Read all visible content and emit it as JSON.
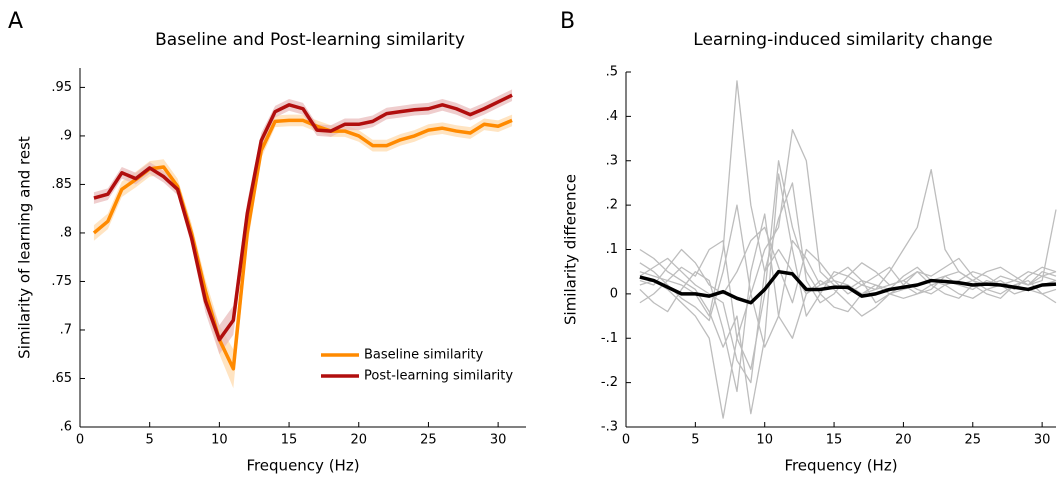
{
  "chart_data": [
    {
      "type": "line",
      "panel_label": "A",
      "title": "Baseline and Post-learning similarity",
      "x_label": "Frequency (Hz)",
      "y_label": "Similarity of learning and rest",
      "x": [
        1,
        2,
        3,
        4,
        5,
        6,
        7,
        8,
        9,
        10,
        11,
        12,
        13,
        14,
        15,
        16,
        17,
        18,
        19,
        20,
        21,
        22,
        23,
        24,
        25,
        26,
        27,
        28,
        29,
        30,
        31
      ],
      "series": [
        {
          "name": "Baseline similarity",
          "color": "#ff8a00",
          "band_color": "#ffd9a8",
          "values": [
            0.8,
            0.812,
            0.845,
            0.855,
            0.866,
            0.868,
            0.848,
            0.8,
            0.74,
            0.69,
            0.66,
            0.8,
            0.885,
            0.915,
            0.916,
            0.916,
            0.91,
            0.905,
            0.905,
            0.9,
            0.89,
            0.89,
            0.896,
            0.9,
            0.906,
            0.908,
            0.905,
            0.903,
            0.912,
            0.91,
            0.916
          ],
          "errors": [
            0.008,
            0.008,
            0.008,
            0.008,
            0.008,
            0.008,
            0.008,
            0.01,
            0.012,
            0.015,
            0.02,
            0.015,
            0.008,
            0.006,
            0.006,
            0.006,
            0.006,
            0.006,
            0.006,
            0.006,
            0.006,
            0.006,
            0.006,
            0.006,
            0.006,
            0.006,
            0.006,
            0.006,
            0.006,
            0.006,
            0.006
          ]
        },
        {
          "name": "Post-learning similarity",
          "color": "#b10e0e",
          "band_color": "#e8b8b8",
          "values": [
            0.836,
            0.84,
            0.862,
            0.856,
            0.867,
            0.858,
            0.845,
            0.795,
            0.73,
            0.69,
            0.71,
            0.82,
            0.895,
            0.925,
            0.932,
            0.928,
            0.906,
            0.905,
            0.912,
            0.912,
            0.915,
            0.923,
            0.925,
            0.927,
            0.928,
            0.932,
            0.928,
            0.922,
            0.928,
            0.935,
            0.942
          ],
          "errors": [
            0.006,
            0.006,
            0.006,
            0.006,
            0.006,
            0.006,
            0.006,
            0.008,
            0.012,
            0.015,
            0.015,
            0.012,
            0.008,
            0.006,
            0.006,
            0.006,
            0.006,
            0.006,
            0.006,
            0.006,
            0.006,
            0.006,
            0.006,
            0.006,
            0.006,
            0.006,
            0.006,
            0.006,
            0.006,
            0.006,
            0.006
          ]
        }
      ],
      "xlim": [
        0,
        32
      ],
      "xticks": [
        0,
        5,
        10,
        15,
        20,
        25,
        30
      ],
      "ylim": [
        0.6,
        0.97
      ],
      "yticks": [
        {
          "value": 0.6,
          "label": ".6"
        },
        {
          "value": 0.65,
          "label": ".65"
        },
        {
          "value": 0.7,
          "label": ".7"
        },
        {
          "value": 0.75,
          "label": ".75"
        },
        {
          "value": 0.8,
          "label": ".8"
        },
        {
          "value": 0.85,
          "label": ".85"
        },
        {
          "value": 0.9,
          "label": ".9"
        },
        {
          "value": 0.95,
          "label": ".95"
        }
      ],
      "legend": "lower right"
    },
    {
      "type": "line",
      "panel_label": "B",
      "title": "Learning-induced similarity change",
      "x_label": "Frequency (Hz)",
      "y_label": "Similarity difference",
      "x": [
        1,
        2,
        3,
        4,
        5,
        6,
        7,
        8,
        9,
        10,
        11,
        12,
        13,
        14,
        15,
        16,
        17,
        18,
        19,
        20,
        21,
        22,
        23,
        24,
        25,
        26,
        27,
        28,
        29,
        30,
        31
      ],
      "series": [
        {
          "color": "#bdbdbd",
          "values": [
            0.05,
            0.04,
            0.03,
            0.02,
            0.0,
            -0.05,
            0.1,
            0.48,
            0.2,
            0.05,
            0.1,
            0.05,
            0.0,
            0.02,
            0.03,
            0.02,
            0.0,
            0.01,
            0.02,
            0.03,
            0.05,
            0.02,
            0.03,
            0.02,
            0.01,
            0.03,
            0.02,
            0.03,
            0.02,
            0.04,
            0.05
          ]
        },
        {
          "color": "#bdbdbd",
          "values": [
            0.02,
            0.03,
            0.01,
            -0.02,
            -0.05,
            -0.1,
            -0.28,
            -0.1,
            0.0,
            0.1,
            0.15,
            0.37,
            0.3,
            0.05,
            0.02,
            0.01,
            0.03,
            0.02,
            0.0,
            0.01,
            0.02,
            0.03,
            0.04,
            0.02,
            0.03,
            0.01,
            0.02,
            0.0,
            0.01,
            0.02,
            0.03
          ]
        },
        {
          "color": "#bdbdbd",
          "values": [
            0.1,
            0.08,
            0.05,
            0.03,
            0.01,
            -0.04,
            -0.12,
            -0.05,
            -0.27,
            -0.1,
            0.27,
            0.1,
            -0.05,
            0.0,
            0.05,
            0.04,
            0.02,
            0.01,
            0.05,
            0.1,
            0.15,
            0.28,
            0.1,
            0.05,
            0.03,
            0.02,
            0.04,
            0.03,
            0.02,
            0.03,
            0.19
          ]
        },
        {
          "color": "#bdbdbd",
          "values": [
            0.04,
            0.06,
            0.08,
            0.05,
            0.02,
            0.0,
            -0.02,
            -0.15,
            -0.2,
            0.05,
            0.17,
            0.25,
            0.03,
            -0.02,
            0.0,
            0.04,
            0.07,
            0.05,
            0.02,
            0.03,
            0.01,
            0.0,
            0.02,
            0.03,
            0.05,
            0.04,
            0.02,
            0.03,
            0.05,
            0.04,
            0.03
          ]
        },
        {
          "color": "#bdbdbd",
          "values": [
            -0.02,
            0.0,
            0.03,
            0.06,
            0.04,
            0.1,
            0.12,
            -0.1,
            -0.17,
            0.0,
            0.3,
            0.15,
            0.05,
            0.0,
            -0.03,
            -0.04,
            0.0,
            0.02,
            0.01,
            0.04,
            0.06,
            0.03,
            0.02,
            0.0,
            -0.01,
            0.01,
            0.0,
            0.02,
            0.01,
            0.0,
            0.01
          ]
        },
        {
          "color": "#bdbdbd",
          "values": [
            0.07,
            0.05,
            0.02,
            -0.01,
            -0.03,
            -0.06,
            0.05,
            0.2,
            0.0,
            -0.12,
            -0.05,
            0.12,
            0.08,
            0.02,
            0.04,
            0.06,
            0.03,
            -0.02,
            0.0,
            0.02,
            0.05,
            0.04,
            0.06,
            0.08,
            0.04,
            0.02,
            0.03,
            0.01,
            0.04,
            0.06,
            0.05
          ]
        },
        {
          "color": "#bdbdbd",
          "values": [
            0.01,
            -0.02,
            -0.04,
            0.01,
            0.05,
            0.03,
            -0.08,
            -0.22,
            0.05,
            0.18,
            -0.05,
            -0.1,
            0.0,
            0.03,
            0.01,
            -0.02,
            -0.05,
            -0.03,
            0.0,
            -0.01,
            0.0,
            0.02,
            0.0,
            -0.01,
            0.02,
            0.0,
            -0.01,
            0.02,
            0.03,
            0.0,
            -0.02
          ]
        },
        {
          "color": "#bdbdbd",
          "values": [
            0.03,
            0.02,
            0.06,
            0.1,
            0.07,
            0.02,
            0.0,
            0.05,
            0.12,
            0.15,
            0.06,
            -0.02,
            0.1,
            0.07,
            0.03,
            0.0,
            0.02,
            0.04,
            0.06,
            0.02,
            0.0,
            0.01,
            0.04,
            0.05,
            0.03,
            0.05,
            0.06,
            0.04,
            0.02,
            0.05,
            0.04
          ]
        },
        {
          "color": "#000000",
          "values": [
            0.038,
            0.03,
            0.015,
            0.0,
            0.0,
            -0.005,
            0.005,
            -0.01,
            -0.02,
            0.01,
            0.05,
            0.045,
            0.01,
            0.01,
            0.015,
            0.015,
            -0.005,
            0.0,
            0.01,
            0.015,
            0.02,
            0.03,
            0.028,
            0.025,
            0.02,
            0.022,
            0.02,
            0.015,
            0.01,
            0.02,
            0.022
          ]
        }
      ],
      "xlim": [
        0,
        31
      ],
      "xticks": [
        0,
        5,
        10,
        15,
        20,
        25,
        30
      ],
      "ylim": [
        -0.3,
        0.5
      ],
      "yticks": [
        {
          "value": -0.3,
          "label": "-.3"
        },
        {
          "value": -0.2,
          "label": "-.2"
        },
        {
          "value": -0.1,
          "label": "-.1"
        },
        0,
        {
          "value": 0.1,
          "label": ".1"
        },
        {
          "value": 0.2,
          "label": ".2"
        },
        {
          "value": 0.3,
          "label": ".3"
        },
        {
          "value": 0.4,
          "label": ".4"
        },
        {
          "value": 0.5,
          "label": ".5"
        }
      ]
    }
  ]
}
